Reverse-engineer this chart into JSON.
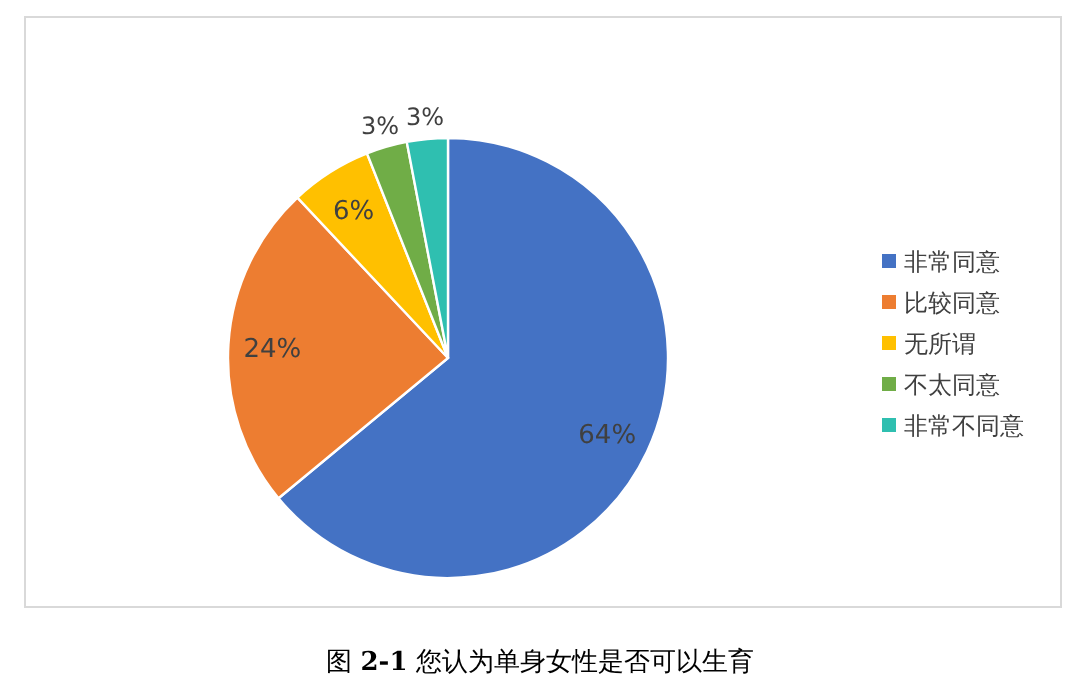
{
  "chart_data": {
    "type": "pie",
    "categories": [
      "非常同意",
      "比较同意",
      "无所谓",
      "不太同意",
      "非常不同意"
    ],
    "values": [
      64,
      24,
      6,
      3,
      3
    ],
    "value_labels": [
      "64%",
      "24%",
      "6%",
      "3%",
      "3%"
    ],
    "colors": [
      "#4472c4",
      "#ed7d31",
      "#ffc000",
      "#70ad47",
      "#2fbfb0"
    ],
    "legend": "right",
    "annotations": [
      "图 **2-1** 您认为单身女性是否可以生育"
    ]
  }
}
